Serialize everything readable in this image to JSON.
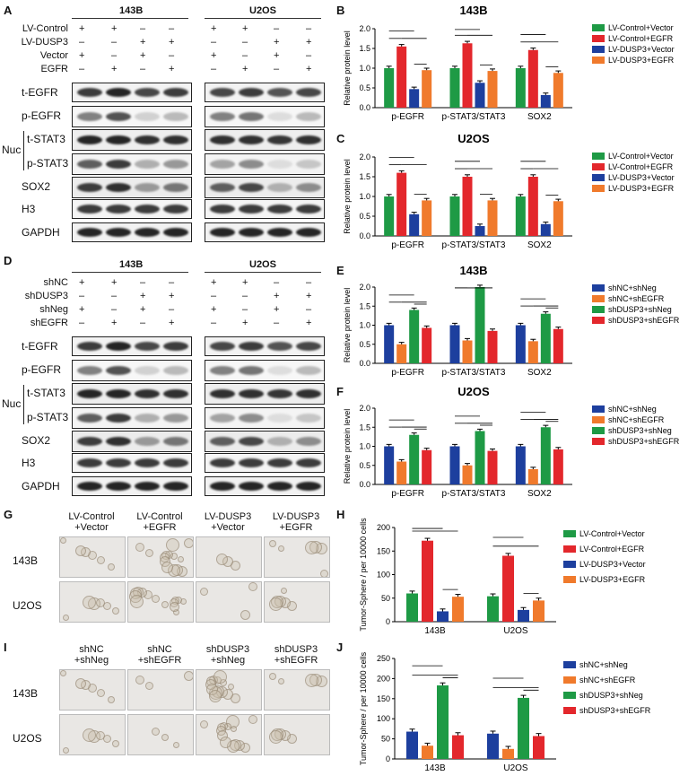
{
  "panels": {
    "A": "A",
    "B": "B",
    "C": "C",
    "D": "D",
    "E": "E",
    "F": "F",
    "G": "G",
    "H": "H",
    "I": "I",
    "J": "J"
  },
  "cells": {
    "c143b": "143B",
    "u2os": "U2OS"
  },
  "panelA": {
    "conds": [
      {
        "label": "LV-Control",
        "signs": [
          "+",
          "+",
          "–",
          "–",
          "+",
          "+",
          "–",
          "–"
        ]
      },
      {
        "label": "LV-DUSP3",
        "signs": [
          "–",
          "–",
          "+",
          "+",
          "–",
          "–",
          "+",
          "+"
        ]
      },
      {
        "label": "Vector",
        "signs": [
          "+",
          "–",
          "+",
          "–",
          "+",
          "–",
          "+",
          "–"
        ]
      },
      {
        "label": "EGFR",
        "signs": [
          "–",
          "+",
          "–",
          "+",
          "–",
          "+",
          "–",
          "+"
        ]
      }
    ],
    "blots": [
      "t-EGFR",
      "p-EGFR",
      "t-STAT3",
      "p-STAT3",
      "SOX2",
      "H3",
      "GAPDH"
    ],
    "nuc": "Nuc"
  },
  "panelD": {
    "conds": [
      {
        "label": "shNC",
        "signs": [
          "+",
          "+",
          "–",
          "–",
          "+",
          "+",
          "–",
          "–"
        ]
      },
      {
        "label": "shDUSP3",
        "signs": [
          "–",
          "–",
          "+",
          "+",
          "–",
          "–",
          "+",
          "+"
        ]
      },
      {
        "label": "shNeg",
        "signs": [
          "+",
          "–",
          "+",
          "–",
          "+",
          "–",
          "+",
          "–"
        ]
      },
      {
        "label": "shEGFR",
        "signs": [
          "–",
          "+",
          "–",
          "+",
          "–",
          "+",
          "–",
          "+"
        ]
      }
    ],
    "blots": [
      "t-EGFR",
      "p-EGFR",
      "t-STAT3",
      "p-STAT3",
      "SOX2",
      "H3",
      "GAPDH"
    ],
    "nuc": "Nuc"
  },
  "legendLV": [
    "LV-Control+Vector",
    "LV-Control+EGFR",
    "LV-DUSP3+Vector",
    "LV-DUSP3+EGFR"
  ],
  "legendSH": [
    "shNC+shNeg",
    "shNC+shEGFR",
    "shDUSP3+shNeg",
    "shDUSP3+shEGFR"
  ],
  "colorsLV": [
    "#1e9a45",
    "#e3272c",
    "#1d3f9e",
    "#f07a2c"
  ],
  "colorsSH": [
    "#1d3f9e",
    "#f07a2c",
    "#1e9a45",
    "#e3272c"
  ],
  "chart_data": [
    {
      "id": "B",
      "type": "bar",
      "title": "143B",
      "ylabel": "Relative protein level",
      "ylim": [
        0,
        2.0
      ],
      "yticks": [
        "0.0",
        "0.5",
        "1.0",
        "1.5",
        "2.0"
      ],
      "categories": [
        "p-EGFR",
        "p-STAT3/STAT3",
        "SOX2"
      ],
      "series": [
        {
          "name": "LV-Control+Vector",
          "values": [
            1.0,
            1.0,
            1.0
          ]
        },
        {
          "name": "LV-Control+EGFR",
          "values": [
            1.55,
            1.63,
            1.46
          ]
        },
        {
          "name": "LV-DUSP3+Vector",
          "values": [
            0.47,
            0.63,
            0.32
          ]
        },
        {
          "name": "LV-DUSP3+EGFR",
          "values": [
            0.95,
            0.93,
            0.88
          ]
        }
      ]
    },
    {
      "id": "C",
      "type": "bar",
      "title": "U2OS",
      "ylabel": "Relative protein level",
      "ylim": [
        0,
        2.0
      ],
      "yticks": [
        "0.0",
        "0.5",
        "1.0",
        "1.5",
        "2.0"
      ],
      "categories": [
        "p-EGFR",
        "p-STAT3/STAT3",
        "SOX2"
      ],
      "series": [
        {
          "name": "LV-Control+Vector",
          "values": [
            1.0,
            1.0,
            1.0
          ]
        },
        {
          "name": "LV-Control+EGFR",
          "values": [
            1.6,
            1.5,
            1.5
          ]
        },
        {
          "name": "LV-DUSP3+Vector",
          "values": [
            0.55,
            0.25,
            0.3
          ]
        },
        {
          "name": "LV-DUSP3+EGFR",
          "values": [
            0.9,
            0.9,
            0.88
          ]
        }
      ]
    },
    {
      "id": "E",
      "type": "bar",
      "title": "143B",
      "ylabel": "Relative protein level",
      "ylim": [
        0,
        2.0
      ],
      "yticks": [
        "0.0",
        "0.5",
        "1.0",
        "1.5",
        "2.0"
      ],
      "categories": [
        "p-EGFR",
        "p-STAT3/STAT3",
        "SOX2"
      ],
      "series": [
        {
          "name": "shNC+shNeg",
          "values": [
            1.0,
            1.0,
            1.0
          ]
        },
        {
          "name": "shNC+shEGFR",
          "values": [
            0.5,
            0.6,
            0.58
          ]
        },
        {
          "name": "shDUSP3+shNeg",
          "values": [
            1.4,
            2.0,
            1.3
          ]
        },
        {
          "name": "shDUSP3+shEGFR",
          "values": [
            0.93,
            0.85,
            0.9
          ]
        }
      ]
    },
    {
      "id": "F",
      "type": "bar",
      "title": "U2OS",
      "ylabel": "Relative protein level",
      "ylim": [
        0,
        2.0
      ],
      "yticks": [
        "0.0",
        "0.5",
        "1.0",
        "1.5",
        "2.0"
      ],
      "categories": [
        "p-EGFR",
        "p-STAT3/STAT3",
        "SOX2"
      ],
      "series": [
        {
          "name": "shNC+shNeg",
          "values": [
            1.0,
            1.0,
            1.0
          ]
        },
        {
          "name": "shNC+shEGFR",
          "values": [
            0.6,
            0.5,
            0.4
          ]
        },
        {
          "name": "shDUSP3+shNeg",
          "values": [
            1.3,
            1.4,
            1.5
          ]
        },
        {
          "name": "shDUSP3+shEGFR",
          "values": [
            0.9,
            0.88,
            0.92
          ]
        }
      ]
    },
    {
      "id": "H",
      "type": "bar",
      "title": "",
      "ylabel": "Tumor-Sphere / per 10000 cells",
      "ylim": [
        0,
        200
      ],
      "yticks": [
        "0",
        "50",
        "100",
        "150",
        "200"
      ],
      "categories": [
        "143B",
        "U2OS"
      ],
      "series": [
        {
          "name": "LV-Control+Vector",
          "values": [
            60,
            54
          ]
        },
        {
          "name": "LV-Control+EGFR",
          "values": [
            172,
            140
          ]
        },
        {
          "name": "LV-DUSP3+Vector",
          "values": [
            22,
            25
          ]
        },
        {
          "name": "LV-DUSP3+EGFR",
          "values": [
            53,
            45
          ]
        }
      ]
    },
    {
      "id": "J",
      "type": "bar",
      "title": "",
      "ylabel": "Tumor-Sphere / per 10000 cells",
      "ylim": [
        0,
        250
      ],
      "yticks": [
        "0",
        "50",
        "100",
        "150",
        "200",
        "250"
      ],
      "categories": [
        "143B",
        "U2OS"
      ],
      "series": [
        {
          "name": "shNC+shNeg",
          "values": [
            68,
            63
          ]
        },
        {
          "name": "shNC+shEGFR",
          "values": [
            33,
            25
          ]
        },
        {
          "name": "shDUSP3+shNeg",
          "values": [
            183,
            152
          ]
        },
        {
          "name": "shDUSP3+shEGFR",
          "values": [
            59,
            57
          ]
        }
      ]
    }
  ],
  "sigB": [
    "**",
    "**",
    "**",
    "*",
    "**",
    "**",
    "**",
    "**",
    "**",
    "***",
    "**",
    "**",
    "**"
  ],
  "panelG": {
    "cols": [
      "LV-Control\n+Vector",
      "LV-Control\n+EGFR",
      "LV-DUSP3\n+Vector",
      "LV-DUSP3\n+EGFR"
    ]
  },
  "panelI": {
    "cols": [
      "shNC\n+shNeg",
      "shNC\n+shEGFR",
      "shDUSP3\n+shNeg",
      "shDUSP3\n+shEGFR"
    ]
  }
}
